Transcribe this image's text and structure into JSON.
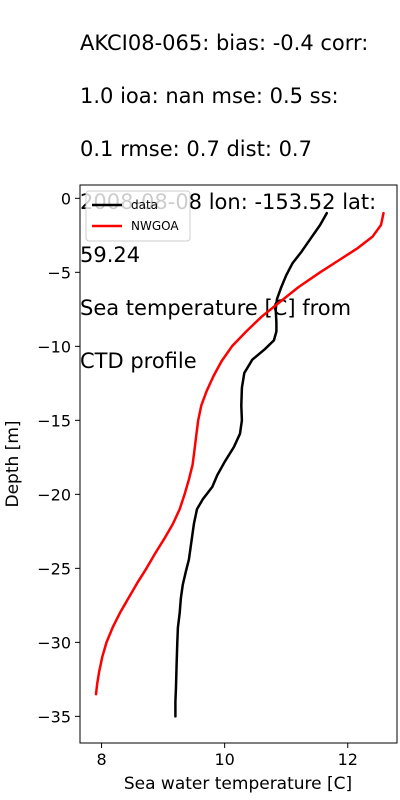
{
  "chart_data": {
    "type": "line",
    "title_lines": [
      "AKCI08-065: bias: -0.4  corr:",
      "1.0  ioa: nan  mse: 0.5  ss:",
      "0.1  rmse: 0.7  dist: 0.7",
      "2008-08-08 lon: -153.52 lat:",
      "59.24",
      "Sea temperature [C] from",
      "CTD profile"
    ],
    "xlabel": "Sea water temperature [C]",
    "ylabel": "Depth [m]",
    "xlim": [
      7.65,
      12.8
    ],
    "ylim": [
      -36.8,
      0.9
    ],
    "xticks": [
      8,
      10,
      12
    ],
    "xtick_labels": [
      "8",
      "10",
      "12"
    ],
    "yticks": [
      0,
      -5,
      -10,
      -15,
      -20,
      -25,
      -30,
      -35
    ],
    "ytick_labels": [
      "0",
      "−5",
      "−10",
      "−15",
      "−20",
      "−25",
      "−30",
      "−35"
    ],
    "legend_position": "top-left",
    "grid": false,
    "series": [
      {
        "name": "data",
        "color": "#000000",
        "points": [
          [
            11.66,
            -1.0
          ],
          [
            11.55,
            -1.8
          ],
          [
            11.4,
            -2.7
          ],
          [
            11.25,
            -3.6
          ],
          [
            11.1,
            -4.4
          ],
          [
            11.0,
            -5.2
          ],
          [
            10.92,
            -6.0
          ],
          [
            10.85,
            -6.8
          ],
          [
            10.83,
            -7.5
          ],
          [
            10.84,
            -8.4
          ],
          [
            10.84,
            -9.0
          ],
          [
            10.8,
            -9.6
          ],
          [
            10.65,
            -10.2
          ],
          [
            10.45,
            -10.9
          ],
          [
            10.32,
            -11.8
          ],
          [
            10.28,
            -12.8
          ],
          [
            10.27,
            -14.0
          ],
          [
            10.28,
            -15.0
          ],
          [
            10.25,
            -15.9
          ],
          [
            10.15,
            -16.8
          ],
          [
            10.0,
            -17.8
          ],
          [
            9.88,
            -18.7
          ],
          [
            9.8,
            -19.5
          ],
          [
            9.65,
            -20.3
          ],
          [
            9.55,
            -21.0
          ],
          [
            9.5,
            -22.0
          ],
          [
            9.46,
            -23.2
          ],
          [
            9.42,
            -24.4
          ],
          [
            9.37,
            -25.2
          ],
          [
            9.32,
            -26.1
          ],
          [
            9.29,
            -27.0
          ],
          [
            9.27,
            -28.0
          ],
          [
            9.24,
            -29.0
          ],
          [
            9.23,
            -30.0
          ],
          [
            9.22,
            -31.5
          ],
          [
            9.21,
            -33.0
          ],
          [
            9.2,
            -34.0
          ],
          [
            9.2,
            -35.0
          ]
        ]
      },
      {
        "name": "NWGOA",
        "color": "#ff0000",
        "points": [
          [
            12.58,
            -1.0
          ],
          [
            12.54,
            -1.8
          ],
          [
            12.4,
            -2.6
          ],
          [
            12.15,
            -3.4
          ],
          [
            11.85,
            -4.2
          ],
          [
            11.55,
            -5.0
          ],
          [
            11.2,
            -6.0
          ],
          [
            10.9,
            -7.0
          ],
          [
            10.6,
            -8.0
          ],
          [
            10.35,
            -9.0
          ],
          [
            10.12,
            -10.0
          ],
          [
            9.95,
            -11.0
          ],
          [
            9.82,
            -12.0
          ],
          [
            9.71,
            -13.0
          ],
          [
            9.62,
            -14.0
          ],
          [
            9.57,
            -15.0
          ],
          [
            9.54,
            -16.0
          ],
          [
            9.51,
            -17.0
          ],
          [
            9.48,
            -18.0
          ],
          [
            9.42,
            -19.0
          ],
          [
            9.35,
            -20.0
          ],
          [
            9.27,
            -21.0
          ],
          [
            9.16,
            -22.0
          ],
          [
            9.02,
            -23.0
          ],
          [
            8.87,
            -24.0
          ],
          [
            8.73,
            -25.0
          ],
          [
            8.58,
            -26.0
          ],
          [
            8.44,
            -27.0
          ],
          [
            8.3,
            -28.0
          ],
          [
            8.18,
            -29.0
          ],
          [
            8.08,
            -30.0
          ],
          [
            8.01,
            -31.0
          ],
          [
            7.96,
            -32.0
          ],
          [
            7.93,
            -32.8
          ],
          [
            7.91,
            -33.5
          ]
        ]
      }
    ]
  }
}
